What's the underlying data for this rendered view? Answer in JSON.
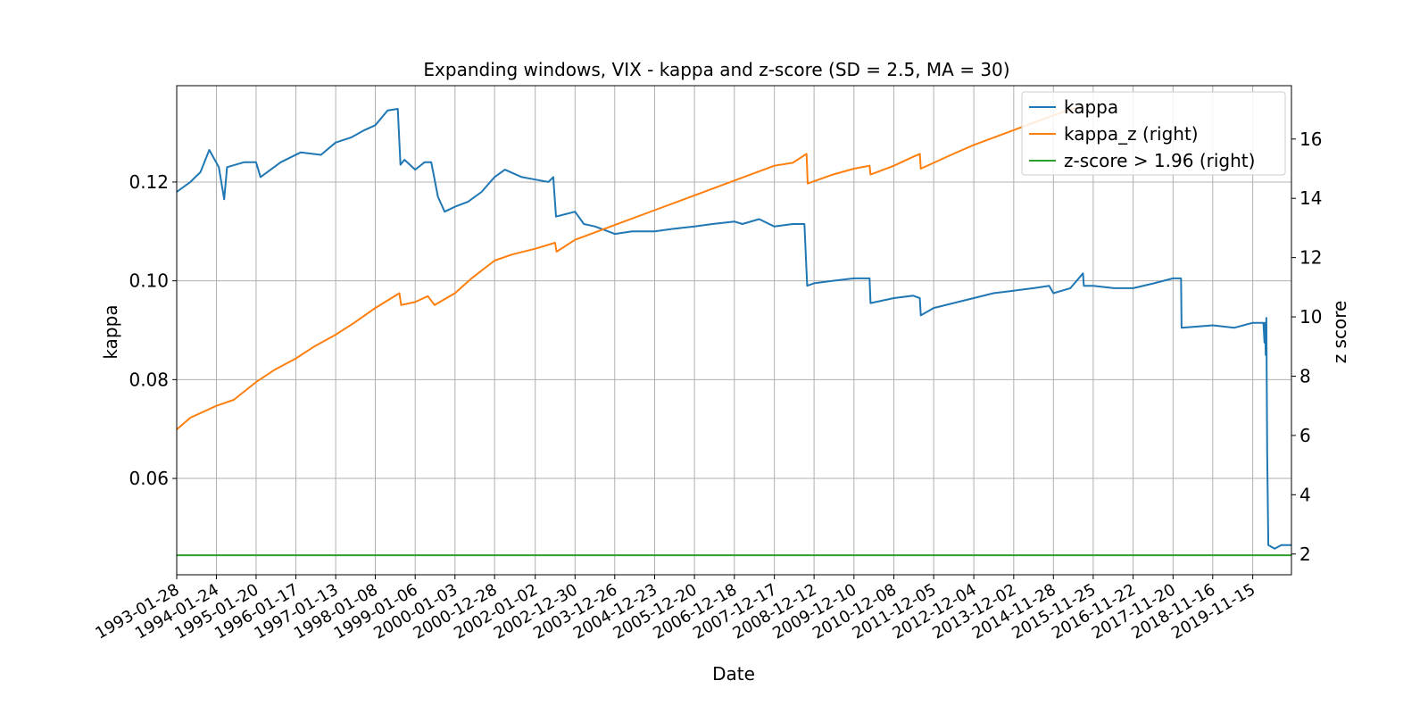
{
  "chart_data": {
    "type": "line",
    "title": "Expanding windows, VIX - kappa and z-score (SD = 2.5, MA = 30)",
    "xlabel": "Date",
    "ylabel": "kappa",
    "ylabel_right": "z score",
    "grid": true,
    "legend_position": "top-right",
    "x_ticks": [
      "1993-01-28",
      "1994-01-24",
      "1995-01-20",
      "1996-01-17",
      "1997-01-13",
      "1998-01-08",
      "1999-01-06",
      "2000-01-03",
      "2000-12-28",
      "2002-01-02",
      "2002-12-30",
      "2003-12-26",
      "2004-12-23",
      "2005-12-20",
      "2006-12-18",
      "2007-12-17",
      "2008-12-12",
      "2009-12-10",
      "2010-12-08",
      "2011-12-05",
      "2012-12-04",
      "2013-12-02",
      "2014-11-28",
      "2015-11-25",
      "2016-11-22",
      "2017-11-20",
      "2018-11-16",
      "2019-11-15"
    ],
    "xlim": [
      "1993-01-28",
      "2020-11-01"
    ],
    "ylim_left": [
      0.0405,
      0.1395
    ],
    "ylim_right": [
      1.3,
      17.8
    ],
    "y_ticks_left": [
      0.06,
      0.08,
      0.1,
      0.12
    ],
    "y_ticks_left_labels": [
      "0.06",
      "0.08",
      "0.10",
      "0.12"
    ],
    "y_ticks_right": [
      2,
      4,
      6,
      8,
      10,
      12,
      14,
      16
    ],
    "series": [
      {
        "name": "kappa",
        "axis": "left",
        "color": "#1f77b4",
        "points": [
          [
            "1993-01-28",
            0.118
          ],
          [
            "1993-06-01",
            0.12
          ],
          [
            "1993-09-01",
            0.122
          ],
          [
            "1993-11-20",
            0.1265
          ],
          [
            "1994-02-15",
            0.123
          ],
          [
            "1994-04-05",
            0.1165
          ],
          [
            "1994-05-01",
            0.123
          ],
          [
            "1994-10-01",
            0.124
          ],
          [
            "1995-01-20",
            0.124
          ],
          [
            "1995-03-01",
            0.121
          ],
          [
            "1995-09-01",
            0.124
          ],
          [
            "1996-03-01",
            0.126
          ],
          [
            "1996-09-01",
            0.1255
          ],
          [
            "1997-01-13",
            0.128
          ],
          [
            "1997-06-01",
            0.129
          ],
          [
            "1997-10-01",
            0.1305
          ],
          [
            "1998-01-08",
            0.1315
          ],
          [
            "1998-05-01",
            0.1345
          ],
          [
            "1998-08-01",
            0.1348
          ],
          [
            "1998-08-25",
            0.1235
          ],
          [
            "1998-10-01",
            0.1245
          ],
          [
            "1999-01-06",
            0.1225
          ],
          [
            "1999-04-01",
            0.124
          ],
          [
            "1999-06-01",
            0.124
          ],
          [
            "1999-08-01",
            0.117
          ],
          [
            "1999-10-01",
            0.114
          ],
          [
            "2000-01-03",
            0.115
          ],
          [
            "2000-05-01",
            0.116
          ],
          [
            "2000-09-01",
            0.118
          ],
          [
            "2000-12-28",
            0.121
          ],
          [
            "2001-04-01",
            0.1225
          ],
          [
            "2001-09-01",
            0.121
          ],
          [
            "2002-01-02",
            0.1205
          ],
          [
            "2002-05-01",
            0.12
          ],
          [
            "2002-06-15",
            0.121
          ],
          [
            "2002-07-10",
            0.113
          ],
          [
            "2002-12-30",
            0.114
          ],
          [
            "2003-03-20",
            0.1115
          ],
          [
            "2003-07-01",
            0.111
          ],
          [
            "2003-12-26",
            0.1095
          ],
          [
            "2004-06-01",
            0.11
          ],
          [
            "2004-12-23",
            0.11
          ],
          [
            "2005-06-01",
            0.1105
          ],
          [
            "2005-12-20",
            0.111
          ],
          [
            "2006-06-01",
            0.1115
          ],
          [
            "2006-12-18",
            0.112
          ],
          [
            "2007-03-01",
            0.1115
          ],
          [
            "2007-08-01",
            0.1125
          ],
          [
            "2007-12-17",
            0.111
          ],
          [
            "2008-06-01",
            0.1115
          ],
          [
            "2008-09-15",
            0.1115
          ],
          [
            "2008-10-10",
            0.099
          ],
          [
            "2008-12-12",
            0.0995
          ],
          [
            "2009-06-01",
            0.1
          ],
          [
            "2009-12-10",
            0.1005
          ],
          [
            "2010-05-01",
            0.1005
          ],
          [
            "2010-05-10",
            0.0955
          ],
          [
            "2010-12-08",
            0.0965
          ],
          [
            "2011-06-01",
            0.097
          ],
          [
            "2011-08-01",
            0.0965
          ],
          [
            "2011-08-10",
            0.093
          ],
          [
            "2011-12-05",
            0.0945
          ],
          [
            "2012-06-01",
            0.0955
          ],
          [
            "2012-12-04",
            0.0965
          ],
          [
            "2013-06-01",
            0.0975
          ],
          [
            "2013-12-02",
            0.098
          ],
          [
            "2014-06-01",
            0.0985
          ],
          [
            "2014-10-20",
            0.099
          ],
          [
            "2014-11-28",
            0.0975
          ],
          [
            "2015-05-01",
            0.0985
          ],
          [
            "2015-08-24",
            0.1015
          ],
          [
            "2015-09-01",
            0.099
          ],
          [
            "2015-11-25",
            0.099
          ],
          [
            "2016-06-01",
            0.0985
          ],
          [
            "2016-11-22",
            0.0985
          ],
          [
            "2017-06-01",
            0.0995
          ],
          [
            "2017-11-20",
            0.1005
          ],
          [
            "2018-02-01",
            0.1005
          ],
          [
            "2018-02-06",
            0.0905
          ],
          [
            "2018-11-16",
            0.091
          ],
          [
            "2019-06-01",
            0.0905
          ],
          [
            "2019-11-15",
            0.0915
          ],
          [
            "2020-02-20",
            0.0915
          ],
          [
            "2020-03-01",
            0.0875
          ],
          [
            "2020-03-05",
            0.0915
          ],
          [
            "2020-03-12",
            0.085
          ],
          [
            "2020-03-18",
            0.0925
          ],
          [
            "2020-03-25",
            0.0655
          ],
          [
            "2020-04-05",
            0.0465
          ],
          [
            "2020-06-01",
            0.0458
          ],
          [
            "2020-08-01",
            0.0465
          ],
          [
            "2020-11-01",
            0.0465
          ]
        ]
      },
      {
        "name": "kappa_z (right)",
        "axis": "right",
        "color": "#ff7f0e",
        "points": [
          [
            "1993-01-28",
            6.2
          ],
          [
            "1993-06-01",
            6.6
          ],
          [
            "1994-01-24",
            7.0
          ],
          [
            "1994-07-01",
            7.2
          ],
          [
            "1995-01-20",
            7.8
          ],
          [
            "1995-07-01",
            8.2
          ],
          [
            "1996-01-17",
            8.6
          ],
          [
            "1996-07-01",
            9.0
          ],
          [
            "1997-01-13",
            9.4
          ],
          [
            "1997-07-01",
            9.8
          ],
          [
            "1998-01-08",
            10.3
          ],
          [
            "1998-08-15",
            10.8
          ],
          [
            "1998-09-01",
            10.4
          ],
          [
            "1999-01-06",
            10.5
          ],
          [
            "1999-05-01",
            10.7
          ],
          [
            "1999-07-01",
            10.4
          ],
          [
            "2000-01-03",
            10.8
          ],
          [
            "2000-06-01",
            11.3
          ],
          [
            "2000-12-28",
            11.9
          ],
          [
            "2001-06-01",
            12.1
          ],
          [
            "2002-01-02",
            12.3
          ],
          [
            "2002-07-01",
            12.5
          ],
          [
            "2002-07-15",
            12.2
          ],
          [
            "2002-12-30",
            12.6
          ],
          [
            "2003-12-26",
            13.1
          ],
          [
            "2004-12-23",
            13.6
          ],
          [
            "2005-12-20",
            14.1
          ],
          [
            "2006-12-18",
            14.6
          ],
          [
            "2007-12-17",
            15.1
          ],
          [
            "2008-06-01",
            15.2
          ],
          [
            "2008-10-05",
            15.5
          ],
          [
            "2008-10-15",
            14.5
          ],
          [
            "2009-06-01",
            14.8
          ],
          [
            "2009-12-10",
            15.0
          ],
          [
            "2010-05-01",
            15.1
          ],
          [
            "2010-05-10",
            14.8
          ],
          [
            "2010-12-08",
            15.1
          ],
          [
            "2011-06-01",
            15.4
          ],
          [
            "2011-08-01",
            15.5
          ],
          [
            "2011-08-10",
            15.0
          ],
          [
            "2012-06-01",
            15.5
          ],
          [
            "2012-12-04",
            15.8
          ],
          [
            "2013-12-02",
            16.3
          ],
          [
            "2014-11-28",
            16.8
          ],
          [
            "2015-05-01",
            17.0
          ],
          [
            "2015-08-20",
            17.1
          ]
        ]
      },
      {
        "name": "z-score > 1.96 (right)",
        "axis": "right",
        "color": "#2ca02c",
        "points": [
          [
            "1993-01-28",
            1.96
          ],
          [
            "2020-11-01",
            1.96
          ]
        ]
      }
    ]
  }
}
